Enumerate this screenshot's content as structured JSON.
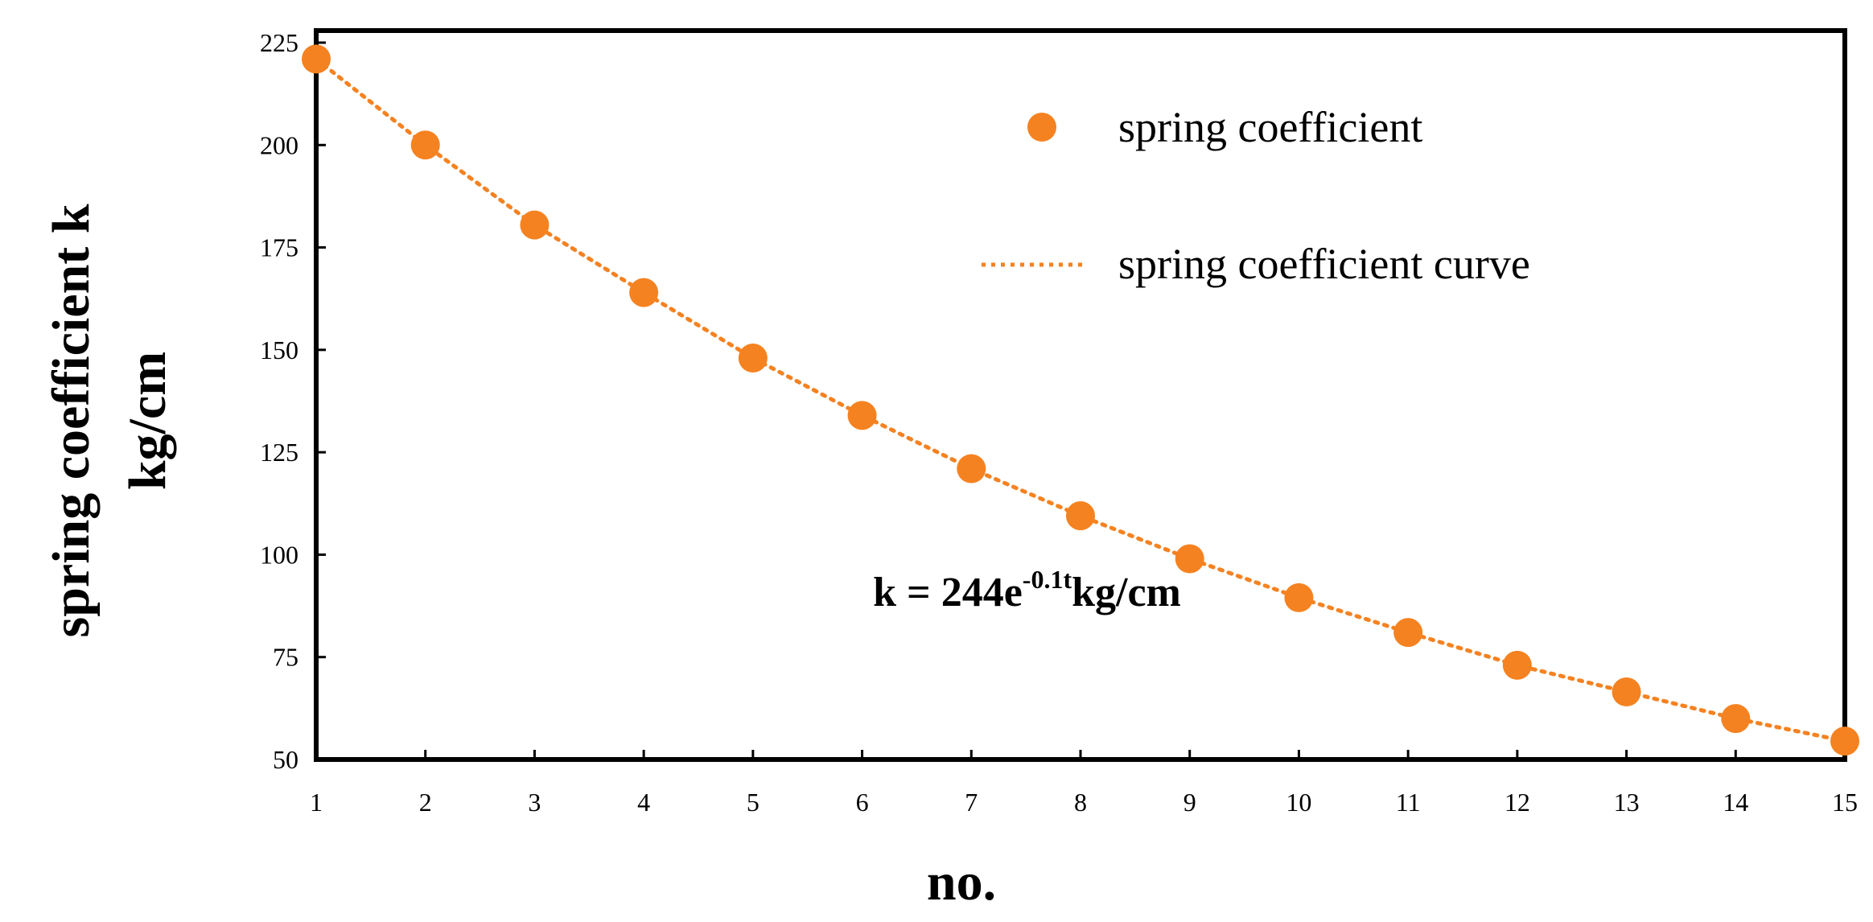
{
  "chart_data": {
    "type": "scatter",
    "xlabel": "no.",
    "ylabel_line1": "spring coefficient k",
    "ylabel_line2": "kg/cm",
    "xlim": [
      1,
      15
    ],
    "ylim": [
      50,
      225
    ],
    "xticks": [
      "1",
      "2",
      "3",
      "4",
      "5",
      "6",
      "7",
      "8",
      "9",
      "10",
      "11",
      "12",
      "13",
      "14",
      "15"
    ],
    "yticks": [
      "50",
      "75",
      "100",
      "125",
      "150",
      "175",
      "200",
      "225"
    ],
    "grid": false,
    "legend_position": "top-right",
    "colors": {
      "series": "#F58220",
      "axis": "#000000"
    },
    "series": [
      {
        "name": "spring coefficient",
        "style": "markers",
        "x": [
          1,
          2,
          3,
          4,
          5,
          6,
          7,
          8,
          9,
          10,
          11,
          12,
          13,
          14,
          15
        ],
        "y": [
          221,
          200,
          180.5,
          164,
          148,
          134,
          121,
          109.5,
          99,
          89.5,
          81,
          73,
          66.5,
          60,
          54.5
        ]
      },
      {
        "name": "spring coefficient curve",
        "style": "dotted-line",
        "x": [
          1,
          2,
          3,
          4,
          5,
          6,
          7,
          8,
          9,
          10,
          11,
          12,
          13,
          14,
          15
        ],
        "y": [
          221,
          200,
          180.5,
          164,
          148,
          134,
          121,
          109.5,
          99,
          89.5,
          81,
          73,
          66.5,
          60,
          54.5
        ]
      }
    ],
    "annotation": {
      "prefix": "k = 244e",
      "superscript": "-0.1t",
      "suffix": "kg/cm",
      "at_x": 6.1,
      "at_y": 95
    }
  }
}
